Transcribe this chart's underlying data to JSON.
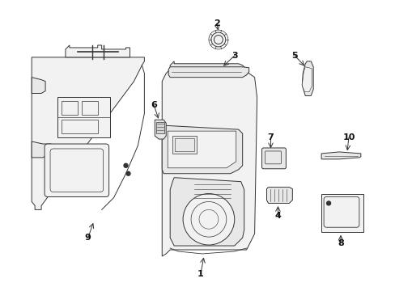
{
  "bg_color": "#ffffff",
  "line_color": "#333333",
  "fill_light": "#f2f2f2",
  "fill_mid": "#e8e8e8",
  "figsize": [
    4.89,
    3.6
  ],
  "dpi": 100
}
